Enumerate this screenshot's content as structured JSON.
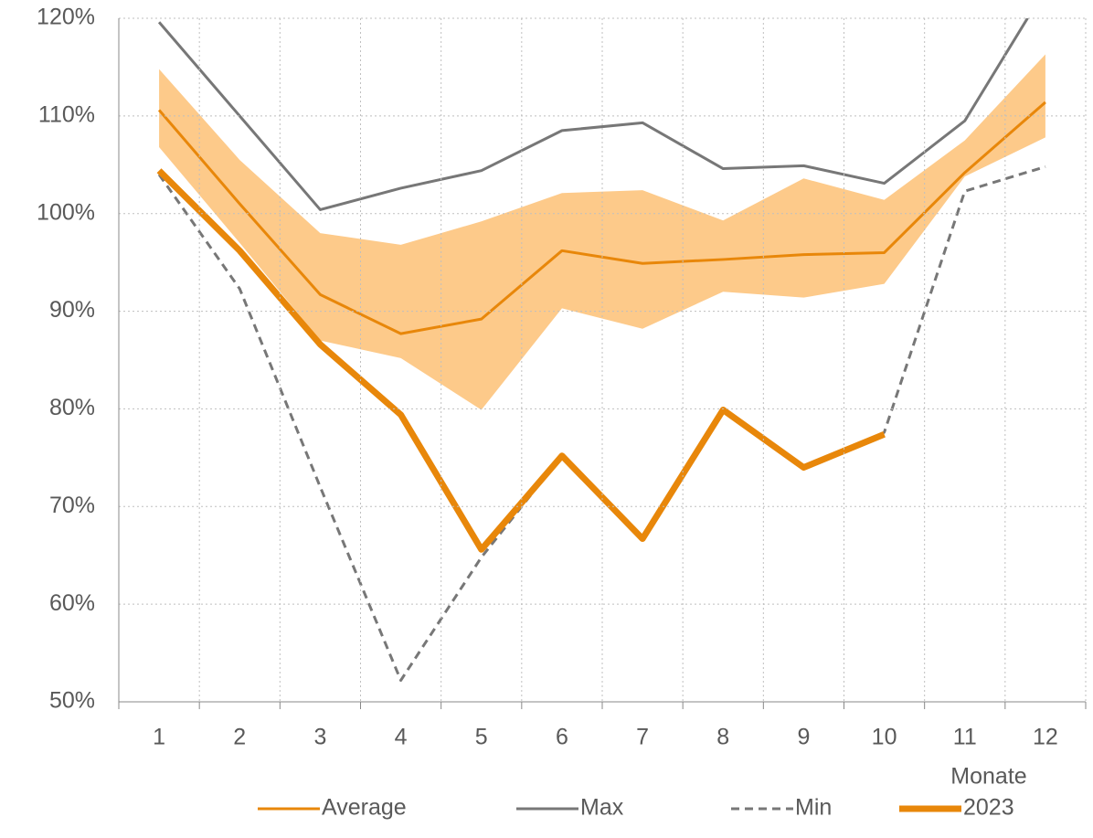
{
  "chart_data": {
    "type": "line",
    "categories": [
      "1",
      "2",
      "3",
      "4",
      "5",
      "6",
      "7",
      "8",
      "9",
      "10",
      "11",
      "12"
    ],
    "x_label": "Monate",
    "ylim": [
      50,
      120
    ],
    "yticks": [
      {
        "value": 50,
        "label": "50%"
      },
      {
        "value": 60,
        "label": "60%"
      },
      {
        "value": 70,
        "label": "70%"
      },
      {
        "value": 80,
        "label": "80%"
      },
      {
        "value": 90,
        "label": "90%"
      },
      {
        "value": 100,
        "label": "100%"
      },
      {
        "value": 110,
        "label": "110%"
      },
      {
        "value": 120,
        "label": "120%"
      }
    ],
    "grid": true,
    "legend": "bottom",
    "band": {
      "color": "#fdca8a",
      "lower": [
        106.8,
        97,
        87,
        85.2,
        79.9,
        90.3,
        88.2,
        92,
        91.4,
        92.8,
        103.8,
        107.8
      ],
      "upper": [
        114.8,
        105.5,
        98,
        96.8,
        99.2,
        102.1,
        102.4,
        99.3,
        103.6,
        101.4,
        107.5,
        116.3
      ]
    },
    "series": [
      {
        "name": "Average",
        "color": "#e8870a",
        "width": 3,
        "dash": false,
        "values": [
          110.6,
          101,
          91.7,
          87.7,
          89.2,
          96.2,
          94.9,
          95.3,
          95.8,
          96,
          104.2,
          111.4
        ]
      },
      {
        "name": "Max",
        "color": "#777777",
        "width": 3,
        "dash": false,
        "values": [
          119.6,
          110,
          100.4,
          102.6,
          104.4,
          108.5,
          109.3,
          104.6,
          104.9,
          103.1,
          109.5,
          123
        ]
      },
      {
        "name": "Min",
        "color": "#777777",
        "width": 3,
        "dash": true,
        "values": [
          104,
          92.3,
          72,
          52.2,
          64.8,
          75.2,
          66.8,
          79.9,
          74,
          77.6,
          102.3,
          104.8
        ]
      },
      {
        "name": "2023",
        "color": "#e8870a",
        "width": 7,
        "dash": false,
        "values": [
          104.4,
          96.2,
          86.6,
          79.4,
          65.6,
          75.2,
          66.7,
          79.9,
          74,
          77.4,
          null,
          null
        ]
      }
    ]
  }
}
